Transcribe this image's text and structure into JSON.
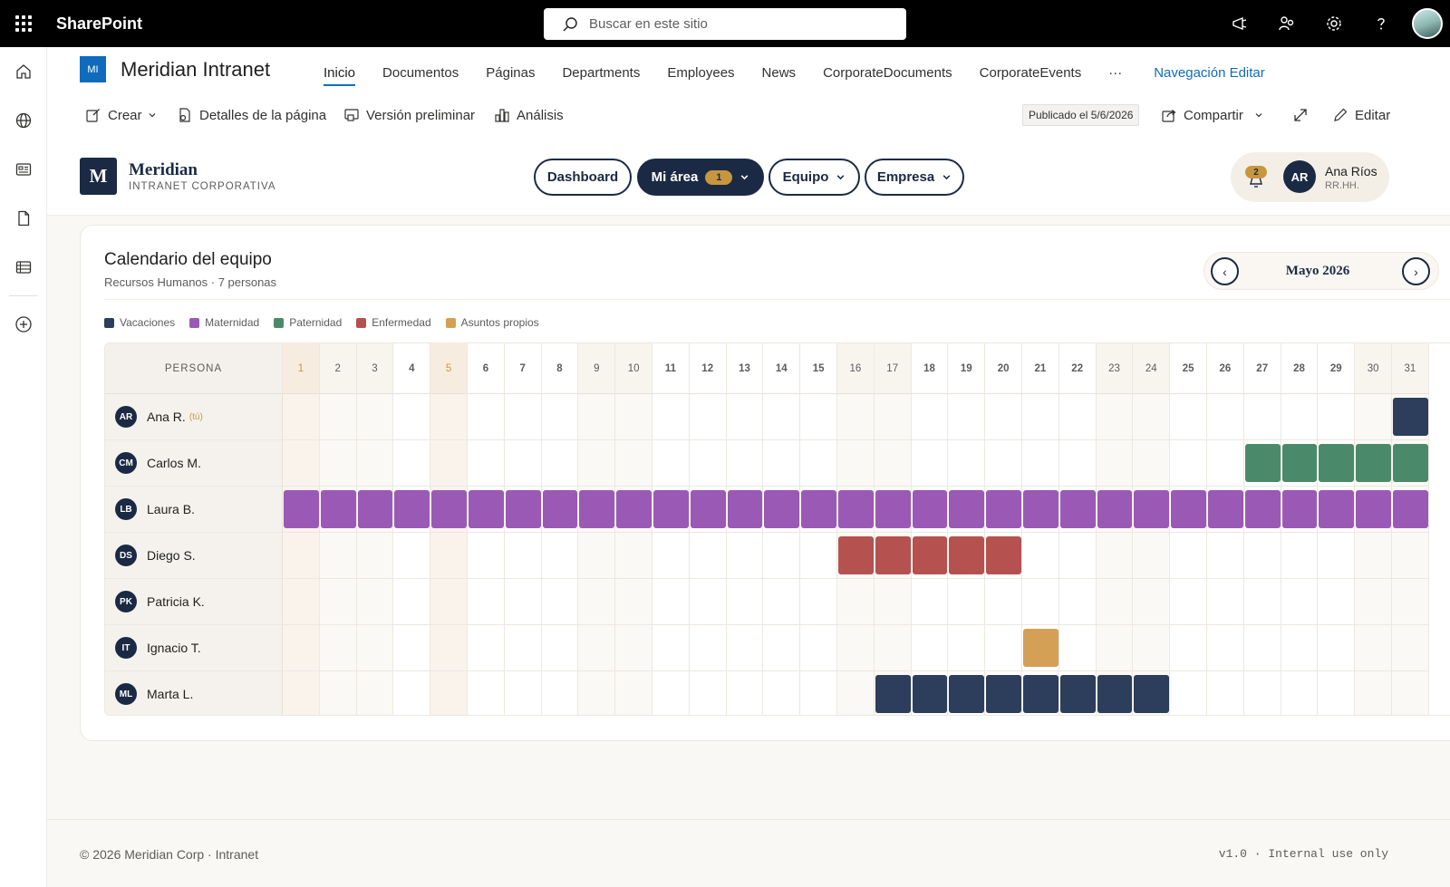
{
  "suitebar": {
    "brand": "SharePoint",
    "search_placeholder": "Buscar en este sitio",
    "icons": [
      "megaphone-icon",
      "people-icon",
      "gear-icon",
      "help-icon",
      "profile-avatar"
    ]
  },
  "appbar": {
    "items": [
      "home-icon",
      "globe-icon",
      "news-icon",
      "file-icon",
      "list-icon",
      "add-icon"
    ]
  },
  "site": {
    "logo_text": "MI",
    "title": "Meridian Intranet",
    "nav": [
      "Inicio",
      "Documentos",
      "Páginas",
      "Departments",
      "Employees",
      "News",
      "CorporateDocuments",
      "CorporateEvents"
    ],
    "nav_more": "···",
    "nav_edit": "Navegación Editar"
  },
  "cmdbar": {
    "crear": "Crear",
    "detalles": "Detalles de la página",
    "version": "Versión preliminar",
    "analisis": "Análisis",
    "publicado": "Publicado el 5/6/2026",
    "compartir": "Compartir",
    "editar": "Editar"
  },
  "brandbar": {
    "logo_letter": "M",
    "name": "Meridian",
    "subtitle": "INTRANET CORPORATIVA",
    "pills": {
      "dashboard": "Dashboard",
      "mi_area": "Mi área",
      "mi_area_badge": "1",
      "equipo": "Equipo",
      "empresa": "Empresa"
    },
    "user": {
      "notifications": "2",
      "initials": "AR",
      "name": "Ana Ríos",
      "role": "RR.HH."
    }
  },
  "calendar": {
    "title": "Calendario del equipo",
    "subtitle": "Recursos Humanos · 7 personas",
    "month": "Mayo 2026",
    "prev": "‹",
    "next": "›",
    "persona_header": "PERSONA",
    "you_tag": "(tú)",
    "legend": [
      {
        "key": "vac",
        "label": "Vacaciones",
        "color": "#2c3e5c"
      },
      {
        "key": "mat",
        "label": "Maternidad",
        "color": "#9b59b6"
      },
      {
        "key": "pat",
        "label": "Paternidad",
        "color": "#4a8a6a"
      },
      {
        "key": "enf",
        "label": "Enfermedad",
        "color": "#b5524f"
      },
      {
        "key": "asu",
        "label": "Asuntos propios",
        "color": "#d4a056"
      }
    ],
    "days": [
      1,
      2,
      3,
      4,
      5,
      6,
      7,
      8,
      9,
      10,
      11,
      12,
      13,
      14,
      15,
      16,
      17,
      18,
      19,
      20,
      21,
      22,
      23,
      24,
      25,
      26,
      27,
      28,
      29,
      30,
      31
    ],
    "highlight_days": [
      1,
      5
    ],
    "weekend_days": [
      2,
      3,
      9,
      10,
      16,
      17,
      23,
      24,
      30,
      31
    ],
    "people": [
      {
        "initials": "AR",
        "name": "Ana R.",
        "you": true,
        "absences": [
          {
            "type": "vac",
            "from": 31,
            "to": 31
          }
        ]
      },
      {
        "initials": "CM",
        "name": "Carlos M.",
        "you": false,
        "absences": [
          {
            "type": "pat",
            "from": 27,
            "to": 31
          }
        ]
      },
      {
        "initials": "LB",
        "name": "Laura B.",
        "you": false,
        "absences": [
          {
            "type": "mat",
            "from": 1,
            "to": 31
          }
        ]
      },
      {
        "initials": "DS",
        "name": "Diego S.",
        "you": false,
        "absences": [
          {
            "type": "enf",
            "from": 16,
            "to": 20
          }
        ]
      },
      {
        "initials": "PK",
        "name": "Patricia K.",
        "you": false,
        "absences": []
      },
      {
        "initials": "IT",
        "name": "Ignacio T.",
        "you": false,
        "absences": [
          {
            "type": "asu",
            "from": 21,
            "to": 21
          }
        ]
      },
      {
        "initials": "ML",
        "name": "Marta L.",
        "you": false,
        "absences": [
          {
            "type": "vac",
            "from": 17,
            "to": 24
          }
        ]
      }
    ]
  },
  "footer": {
    "left": "© 2026 Meridian Corp · Intranet",
    "right": "v1.0 · Internal use only"
  }
}
